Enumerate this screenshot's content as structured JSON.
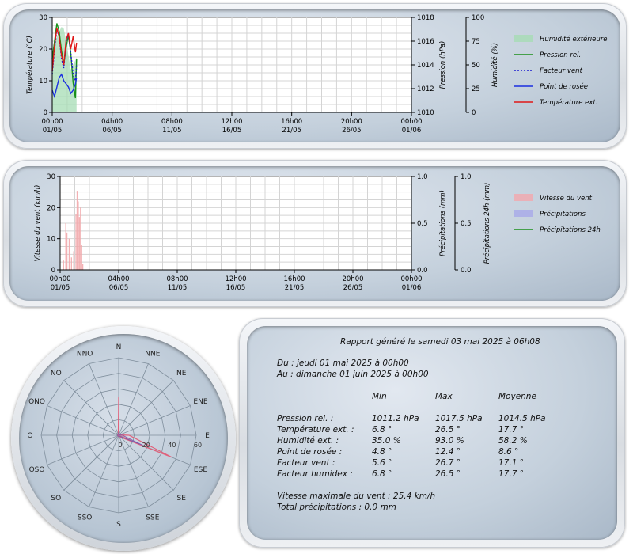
{
  "chart_data": [
    {
      "type": "line",
      "y_left": {
        "label": "Température (°C)",
        "ticks": [
          "0",
          "10",
          "20",
          "30"
        ],
        "range": [
          0,
          30
        ]
      },
      "y_right1": {
        "label": "Pression (hPa)",
        "ticks": [
          "1010",
          "1012",
          "1014",
          "1016",
          "1018"
        ],
        "range": [
          1010,
          1018
        ]
      },
      "y_right2": {
        "label": "Humidité (%)",
        "ticks": [
          "0",
          "25",
          "50",
          "75",
          "100"
        ],
        "range": [
          0,
          100
        ]
      },
      "x_ticks": [
        {
          "time": "00h00",
          "date": "01/05"
        },
        {
          "time": "04h00",
          "date": "06/05"
        },
        {
          "time": "08h00",
          "date": "11/05"
        },
        {
          "time": "12h00",
          "date": "16/05"
        },
        {
          "time": "16h00",
          "date": "21/05"
        },
        {
          "time": "20h00",
          "date": "26/05"
        },
        {
          "time": "00h00",
          "date": "01/06"
        }
      ],
      "x_range_days": [
        0,
        31
      ],
      "series": [
        {
          "name": "Humidité extérieure",
          "kind": "area",
          "color": "#a6dcb4",
          "axis": "y_right2",
          "x": [
            0,
            0.2,
            0.4,
            0.6,
            0.8,
            1.0,
            1.2,
            1.4,
            1.6,
            1.8,
            2.0,
            2.1
          ],
          "values": [
            60,
            70,
            80,
            85,
            90,
            88,
            75,
            60,
            45,
            50,
            55,
            58
          ]
        },
        {
          "name": "Pression rel.",
          "kind": "line",
          "color": "#1a8f1a",
          "axis": "y_right1",
          "x": [
            0,
            0.2,
            0.4,
            0.6,
            0.8,
            1.0,
            1.2,
            1.4,
            1.6,
            1.8,
            2.0,
            2.1
          ],
          "values": [
            1014.5,
            1016,
            1017.5,
            1016.8,
            1015.2,
            1014,
            1015.5,
            1016.5,
            1015,
            1012.5,
            1011.2,
            1014.5
          ]
        },
        {
          "name": "Facteur vent",
          "kind": "dotted",
          "color": "#1a1ad0",
          "axis": "y_left",
          "x": [
            0,
            0.2,
            0.4,
            0.6,
            0.8,
            1.0,
            1.2,
            1.4,
            1.6,
            1.8,
            2.0,
            2.1
          ],
          "values": [
            12,
            20,
            26,
            24,
            17,
            14,
            22,
            25,
            19,
            12,
            10,
            15
          ]
        },
        {
          "name": "Point de rosée",
          "kind": "line",
          "color": "#1a2ee0",
          "axis": "y_left",
          "x": [
            0,
            0.2,
            0.4,
            0.6,
            0.8,
            1.0,
            1.2,
            1.4,
            1.6,
            1.8,
            2.0,
            2.1
          ],
          "values": [
            7,
            5,
            8,
            11,
            12,
            10,
            9,
            8,
            6,
            7,
            9,
            11
          ]
        },
        {
          "name": "Température ext.",
          "kind": "line",
          "color": "#e01818",
          "axis": "y_left",
          "x": [
            0,
            0.2,
            0.4,
            0.6,
            0.8,
            1.0,
            1.2,
            1.4,
            1.6,
            1.8,
            2.0,
            2.1
          ],
          "values": [
            13,
            21,
            26.5,
            24,
            18,
            15,
            23,
            25,
            20,
            24,
            19,
            22
          ]
        }
      ]
    },
    {
      "type": "bar",
      "y_left": {
        "label": "Vitesse du vent (km/h)",
        "ticks": [
          "0",
          "10",
          "20",
          "30"
        ],
        "range": [
          0,
          30
        ]
      },
      "y_right1": {
        "label": "Précipitations (mm)",
        "ticks": [
          "0.0",
          "0.5",
          "1.0"
        ],
        "range": [
          0,
          1
        ]
      },
      "y_right2": {
        "label": "Précipitations 24h (mm)",
        "ticks": [
          "0.0",
          "0.5",
          "1.0"
        ],
        "range": [
          0,
          1
        ]
      },
      "x_ticks": [
        {
          "time": "00h00",
          "date": "01/05"
        },
        {
          "time": "04h00",
          "date": "06/05"
        },
        {
          "time": "08h00",
          "date": "11/05"
        },
        {
          "time": "12h00",
          "date": "16/05"
        },
        {
          "time": "16h00",
          "date": "21/05"
        },
        {
          "time": "20h00",
          "date": "26/05"
        },
        {
          "time": "00h00",
          "date": "01/06"
        }
      ],
      "x_range_days": [
        0,
        31
      ],
      "series": [
        {
          "name": "Vitesse du vent",
          "kind": "bars",
          "color": "#f2a8ac",
          "x": [
            0.3,
            0.5,
            0.6,
            0.8,
            1.0,
            1.2,
            1.4,
            1.5,
            1.6,
            1.7,
            1.8,
            1.9,
            2.0
          ],
          "values": [
            3,
            15,
            12,
            10,
            4,
            6,
            18,
            25.4,
            22,
            17,
            20,
            8,
            2
          ]
        },
        {
          "name": "Précipitations",
          "kind": "bars",
          "color": "#a7a9e8",
          "x": [],
          "values": []
        },
        {
          "name": "Précipitations 24h",
          "kind": "line",
          "color": "#1a8f1a",
          "x": [],
          "values": []
        }
      ]
    },
    {
      "type": "radar",
      "directions": [
        "N",
        "NNE",
        "NE",
        "ENE",
        "E",
        "ESE",
        "SE",
        "SSE",
        "S",
        "SSO",
        "SO",
        "OSO",
        "O",
        "ONO",
        "NO",
        "NNO"
      ],
      "radial_ticks": [
        "0",
        "20",
        "40",
        "60"
      ],
      "range": [
        0,
        60
      ],
      "values": [
        2,
        0,
        0,
        0,
        3,
        20,
        1,
        0,
        0,
        0,
        0,
        0,
        0,
        0,
        0,
        0
      ],
      "max_line": [
        30,
        0,
        0,
        0,
        8,
        45,
        2,
        0,
        0,
        0,
        0,
        0,
        0,
        0,
        0,
        0
      ],
      "color": "#e0607a"
    }
  ],
  "report": {
    "title": "Rapport généré le samedi 03 mai 2025 à 06h08",
    "from": "Du : jeudi 01 mai 2025 à 00h00",
    "to": "Au : dimanche 01 juin 2025 à 00h00",
    "headers": [
      "Min",
      "Max",
      "Moyenne"
    ],
    "rows": [
      {
        "label": "Pression rel. :",
        "min": "1011.2 hPa",
        "max": "1017.5 hPa",
        "avg": "1014.5 hPa"
      },
      {
        "label": "Température ext. :",
        "min": "6.8 °",
        "max": "26.5 °",
        "avg": "17.7 °"
      },
      {
        "label": "Humidité ext. :",
        "min": "35.0 %",
        "max": "93.0 %",
        "avg": "58.2 %"
      },
      {
        "label": "Point de rosée :",
        "min": "4.8 °",
        "max": "12.4 °",
        "avg": "8.6 °"
      },
      {
        "label": "Facteur vent :",
        "min": "5.6 °",
        "max": "26.7 °",
        "avg": "17.1 °"
      },
      {
        "label": "Facteur humidex :",
        "min": "6.8 °",
        "max": "26.5 °",
        "avg": "17.7 °"
      }
    ],
    "wind_max": "Vitesse maximale du vent : 25.4 km/h",
    "rain_total": "Total précipitations : 0.0 mm"
  }
}
